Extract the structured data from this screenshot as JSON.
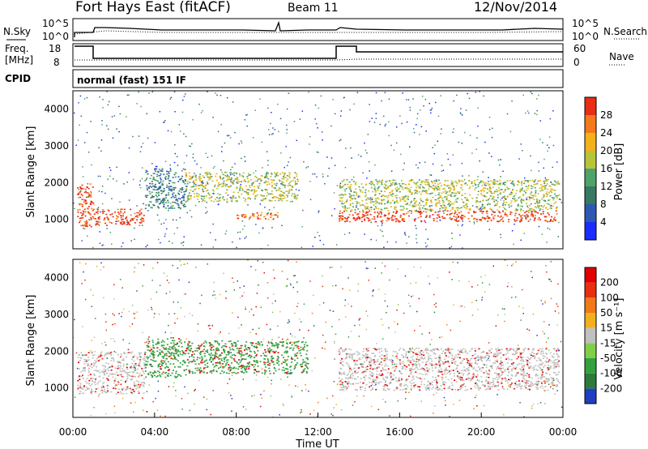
{
  "header": {
    "station": "Fort Hays East (fitACF)",
    "beam": "Beam 11",
    "date": "12/Nov/2014"
  },
  "panels": {
    "noise": {
      "left_label": "N.Sky",
      "right_label": "N.Search",
      "ticks_left": [
        "10^5",
        "10^0"
      ],
      "ticks_right": [
        "10^5",
        "10^0"
      ]
    },
    "freq": {
      "left_label_1": "Freq.",
      "left_label_2": "[MHz]",
      "right_label": "Nave",
      "ticks_left": [
        "18",
        "8"
      ],
      "ticks_right": [
        "60",
        "0"
      ]
    },
    "cpid": {
      "label": "CPID",
      "text": "normal (fast) 151 IF"
    }
  },
  "chart_data": [
    {
      "type": "heatmap",
      "name": "power",
      "ylabel": "Slant Range [km]",
      "xlabel": "",
      "ylim": [
        200,
        4500
      ],
      "yticks": [
        1000,
        2000,
        3000,
        4000
      ],
      "colorbar_label": "Power [dB]",
      "colorbar_ticks": [
        "4",
        "8",
        "12",
        "16",
        "20",
        "24",
        "28"
      ],
      "colorbar_colors": [
        "#1c2bff",
        "#2f58b3",
        "#357a62",
        "#4ea36a",
        "#b7c43a",
        "#f3b21a",
        "#f5781b",
        "#e82e14"
      ],
      "regions": [
        {
          "x0": 0.2,
          "x1": 1.0,
          "y0": 800,
          "y1": 2000,
          "level": 7
        },
        {
          "x0": 1.0,
          "x1": 3.5,
          "y0": 850,
          "y1": 1300,
          "level": 7
        },
        {
          "x0": 13.0,
          "x1": 23.8,
          "y0": 950,
          "y1": 1250,
          "level": 7
        },
        {
          "x0": 13.0,
          "x1": 23.8,
          "y0": 1250,
          "y1": 2100,
          "level": 4
        },
        {
          "x0": 3.5,
          "x1": 5.5,
          "y0": 1300,
          "y1": 2400,
          "level": 2
        },
        {
          "x0": 5.5,
          "x1": 11.0,
          "y0": 1500,
          "y1": 2300,
          "level": 4
        },
        {
          "x0": 8.0,
          "x1": 10.0,
          "y0": 1000,
          "y1": 1200,
          "level": 6
        }
      ]
    },
    {
      "type": "heatmap",
      "name": "velocity",
      "ylabel": "Slant Range [km]",
      "xlabel": "Time UT",
      "ylim": [
        200,
        4500
      ],
      "yticks": [
        1000,
        2000,
        3000,
        4000
      ],
      "xticks": [
        "00:00",
        "04:00",
        "08:00",
        "12:00",
        "16:00",
        "20:00",
        "00:00"
      ],
      "colorbar_label": "Velocity [m s⁻¹]",
      "colorbar_ticks": [
        "200",
        "100",
        "50",
        "15",
        "-15",
        "-50",
        "-100",
        "-200"
      ],
      "colorbar_colors": [
        "#203fbf",
        "#2e7a3a",
        "#34a040",
        "#7fcf48",
        "#c0c0c0",
        "#f0b020",
        "#f07a18",
        "#e83010",
        "#e00000"
      ],
      "regions": [
        {
          "x0": 0.2,
          "x1": 3.5,
          "y0": 850,
          "y1": 2000,
          "level": "-15"
        },
        {
          "x0": 3.5,
          "x1": 5.5,
          "y0": 1300,
          "y1": 2400,
          "level": "50"
        },
        {
          "x0": 5.5,
          "x1": 11.5,
          "y0": 1400,
          "y1": 2300,
          "level": "50"
        },
        {
          "x0": 13.0,
          "x1": 23.8,
          "y0": 950,
          "y1": 2100,
          "level": "-15"
        }
      ]
    }
  ]
}
